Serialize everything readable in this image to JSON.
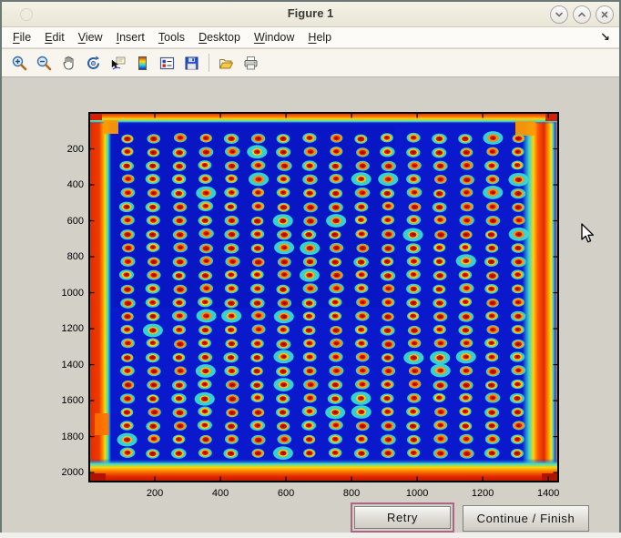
{
  "window": {
    "title": "Figure 1",
    "controls": {
      "minimize": "chevron-down",
      "maximize": "chevron-up",
      "close": "x"
    }
  },
  "menu_bar": {
    "items": [
      "File",
      "Edit",
      "View",
      "Insert",
      "Tools",
      "Desktop",
      "Window",
      "Help"
    ],
    "dock_arrow": "↘"
  },
  "toolbar": {
    "buttons": [
      "zoom-in",
      "zoom-out",
      "pan",
      "rotate-3d",
      "data-cursor",
      "insert-colorbar",
      "insert-legend",
      "save-figure",
      "open-file",
      "print-figure"
    ]
  },
  "axes": {
    "x_ticks": [
      200,
      400,
      600,
      800,
      1000,
      1200,
      1400
    ],
    "y_ticks": [
      200,
      400,
      600,
      800,
      1000,
      1200,
      1400,
      1600,
      1800,
      2000
    ],
    "x_range": [
      1,
      1430
    ],
    "y_range": [
      1,
      2050
    ]
  },
  "chart_data": {
    "type": "heatmap",
    "title": "Figure 1",
    "xlabel": "",
    "ylabel": "",
    "x_ticks": [
      200,
      400,
      600,
      800,
      1000,
      1200,
      1400
    ],
    "y_ticks": [
      200,
      400,
      600,
      800,
      1000,
      1200,
      1400,
      1600,
      1800,
      2000
    ],
    "x_range": [
      1,
      1430
    ],
    "y_range": [
      1,
      2050
    ],
    "colormap": "jet",
    "description": "Thermal/intensity image of a 384-well microplate shown with jet colormap: 24 rows x 16 columns of hot spots (dark-red cores, yellow-orange rings, cyan halos) on a deep blue background; plate edges read hot as red/orange bands.",
    "grid": {
      "rows": 24,
      "cols": 16,
      "first_center_xy": [
        117,
        142
      ],
      "spacing_xy": [
        79.5,
        76
      ]
    }
  },
  "plate_colors": {
    "background_blue": "#0d1dd6",
    "halo_cyan": "#35dcd8",
    "ring_yellow": "#ffbe00",
    "spot_red": "#e01800",
    "core_dark_red": "#990c00",
    "edge_orange": "#ff7a00",
    "edge_red": "#e02800"
  },
  "action_buttons": {
    "retry": "Retry",
    "continue_finish": "Continue / Finish",
    "focus_ring_color": "#ad6586"
  }
}
